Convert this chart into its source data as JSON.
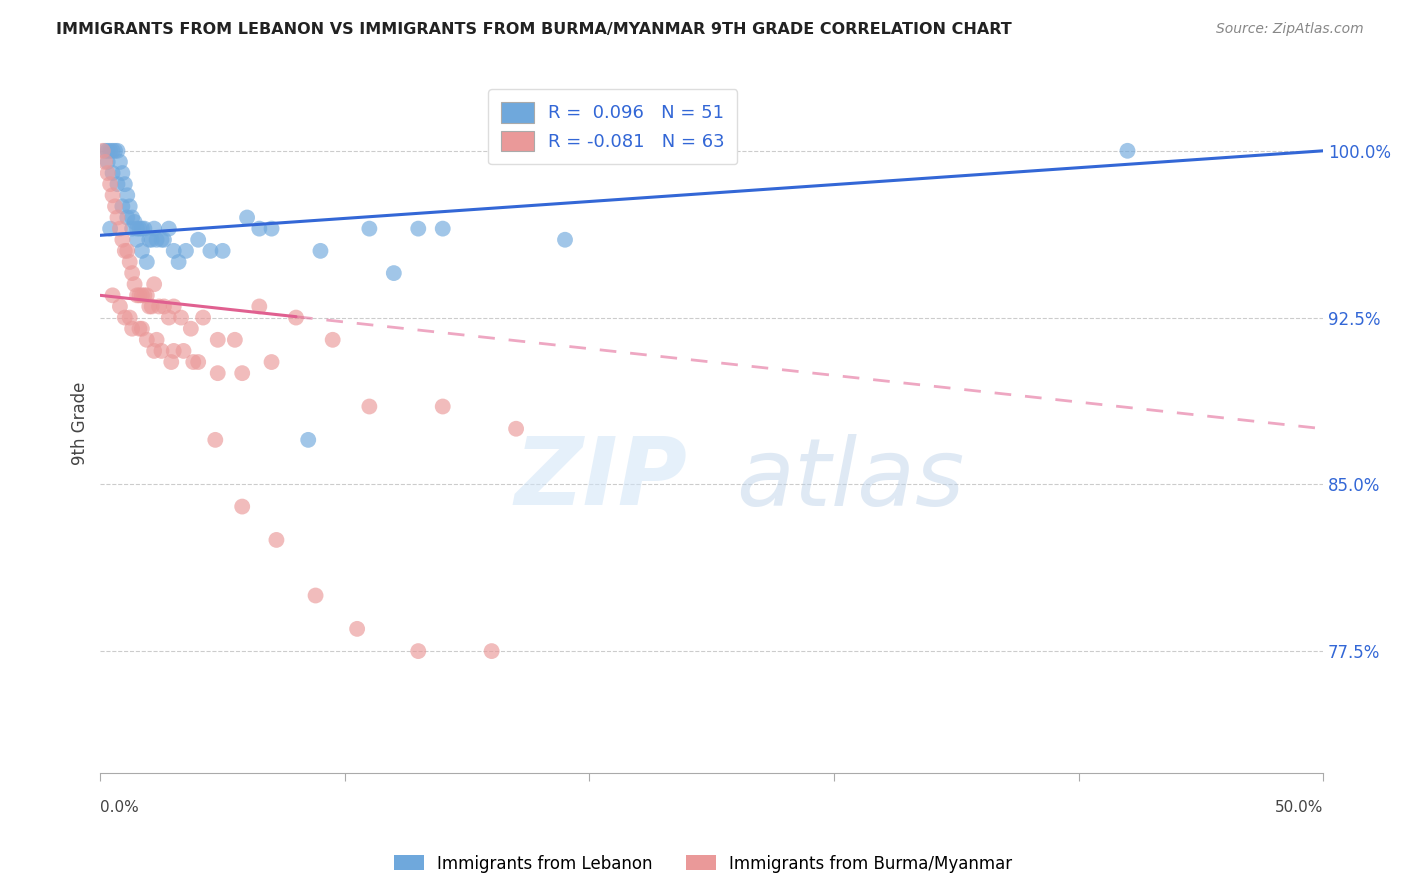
{
  "title": "IMMIGRANTS FROM LEBANON VS IMMIGRANTS FROM BURMA/MYANMAR 9TH GRADE CORRELATION CHART",
  "source": "Source: ZipAtlas.com",
  "ylabel": "9th Grade",
  "yticks": [
    77.5,
    85.0,
    92.5,
    100.0
  ],
  "ytick_labels": [
    "77.5%",
    "85.0%",
    "92.5%",
    "100.0%"
  ],
  "xmin": 0.0,
  "xmax": 50.0,
  "ymin": 72.0,
  "ymax": 103.5,
  "legend_r1": "R =  0.096",
  "legend_n1": "N = 51",
  "legend_r2": "R = -0.081",
  "legend_n2": "N = 63",
  "label1": "Immigrants from Lebanon",
  "label2": "Immigrants from Burma/Myanmar",
  "color1": "#6fa8dc",
  "color2": "#ea9999",
  "trendline1_color": "#3367d6",
  "trendline2_color": "#e06090",
  "watermark_zip": "ZIP",
  "watermark_atlas": "atlas",
  "blue_trendline_x": [
    0.0,
    50.0
  ],
  "blue_trendline_y": [
    96.2,
    100.0
  ],
  "pink_trendline_x": [
    0.0,
    50.0
  ],
  "pink_trendline_y": [
    93.5,
    87.5
  ],
  "pink_solid_end_x": 8.0,
  "blue_scatter_x": [
    0.2,
    0.3,
    0.4,
    0.5,
    0.6,
    0.7,
    0.8,
    0.9,
    1.0,
    1.1,
    1.2,
    1.3,
    1.4,
    1.5,
    1.6,
    1.7,
    1.8,
    2.0,
    2.2,
    2.5,
    2.8,
    3.0,
    3.5,
    4.0,
    5.0,
    6.0,
    7.0,
    9.0,
    11.0,
    12.0,
    14.0,
    0.3,
    0.5,
    0.7,
    0.9,
    1.1,
    1.3,
    1.5,
    1.7,
    1.9,
    2.1,
    2.3,
    2.6,
    3.2,
    4.5,
    6.5,
    8.5,
    13.0,
    19.0,
    42.0,
    0.4
  ],
  "blue_scatter_y": [
    100.0,
    100.0,
    100.0,
    100.0,
    100.0,
    100.0,
    99.5,
    99.0,
    98.5,
    98.0,
    97.5,
    97.0,
    96.8,
    96.5,
    96.5,
    96.5,
    96.5,
    96.0,
    96.5,
    96.0,
    96.5,
    95.5,
    95.5,
    96.0,
    95.5,
    97.0,
    96.5,
    95.5,
    96.5,
    94.5,
    96.5,
    99.5,
    99.0,
    98.5,
    97.5,
    97.0,
    96.5,
    96.0,
    95.5,
    95.0,
    96.0,
    96.0,
    96.0,
    95.0,
    95.5,
    96.5,
    87.0,
    96.5,
    96.0,
    100.0,
    96.5
  ],
  "pink_scatter_x": [
    0.1,
    0.2,
    0.3,
    0.4,
    0.5,
    0.6,
    0.7,
    0.8,
    0.9,
    1.0,
    1.1,
    1.2,
    1.3,
    1.4,
    1.5,
    1.6,
    1.7,
    1.8,
    1.9,
    2.0,
    2.1,
    2.2,
    2.4,
    2.6,
    2.8,
    3.0,
    3.3,
    3.7,
    4.2,
    4.8,
    5.5,
    6.5,
    8.0,
    1.0,
    1.3,
    1.6,
    1.9,
    2.2,
    2.5,
    2.9,
    3.4,
    4.0,
    4.8,
    5.8,
    7.0,
    9.5,
    11.0,
    14.0,
    17.0,
    0.5,
    0.8,
    1.2,
    1.7,
    2.3,
    3.0,
    3.8,
    4.7,
    5.8,
    7.2,
    8.8,
    10.5,
    13.0,
    16.0
  ],
  "pink_scatter_y": [
    100.0,
    99.5,
    99.0,
    98.5,
    98.0,
    97.5,
    97.0,
    96.5,
    96.0,
    95.5,
    95.5,
    95.0,
    94.5,
    94.0,
    93.5,
    93.5,
    93.5,
    93.5,
    93.5,
    93.0,
    93.0,
    94.0,
    93.0,
    93.0,
    92.5,
    93.0,
    92.5,
    92.0,
    92.5,
    91.5,
    91.5,
    93.0,
    92.5,
    92.5,
    92.0,
    92.0,
    91.5,
    91.0,
    91.0,
    90.5,
    91.0,
    90.5,
    90.0,
    90.0,
    90.5,
    91.5,
    88.5,
    88.5,
    87.5,
    93.5,
    93.0,
    92.5,
    92.0,
    91.5,
    91.0,
    90.5,
    87.0,
    84.0,
    82.5,
    80.0,
    78.5,
    77.5,
    77.5
  ]
}
